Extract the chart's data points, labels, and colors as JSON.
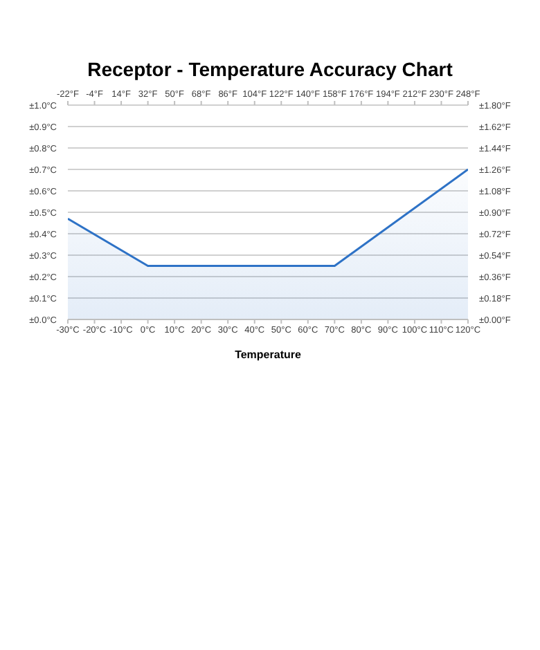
{
  "chart_data": {
    "type": "area",
    "title": "Receptor - Temperature Accuracy Chart",
    "xlabel": "Temperature",
    "x": [
      -30,
      0,
      70,
      120
    ],
    "series": [
      {
        "color": "#2e72c6",
        "values": [
          0.47,
          0.25,
          0.25,
          0.7
        ]
      }
    ],
    "xlim": [
      -30,
      120
    ],
    "xticks": [
      {
        "value": -30,
        "label": "-30°C"
      },
      {
        "value": -20,
        "label": "-20°C"
      },
      {
        "value": -10,
        "label": "-10°C"
      },
      {
        "value": 0,
        "label": "0°C"
      },
      {
        "value": 10,
        "label": "10°C"
      },
      {
        "value": 20,
        "label": "20°C"
      },
      {
        "value": 30,
        "label": "30°C"
      },
      {
        "value": 40,
        "label": "40°C"
      },
      {
        "value": 50,
        "label": "50°C"
      },
      {
        "value": 60,
        "label": "60°C"
      },
      {
        "value": 70,
        "label": "70°C"
      },
      {
        "value": 80,
        "label": "80°C"
      },
      {
        "value": 90,
        "label": "90°C"
      },
      {
        "value": 100,
        "label": "100°C"
      },
      {
        "value": 110,
        "label": "110°C"
      },
      {
        "value": 120,
        "label": "120°C"
      }
    ],
    "x2lim": [
      -22,
      248
    ],
    "x2ticks": [
      {
        "value": -22,
        "label": "-22°F"
      },
      {
        "value": -4,
        "label": "-4°F"
      },
      {
        "value": 14,
        "label": "14°F"
      },
      {
        "value": 32,
        "label": "32°F"
      },
      {
        "value": 50,
        "label": "50°F"
      },
      {
        "value": 68,
        "label": "68°F"
      },
      {
        "value": 86,
        "label": "86°F"
      },
      {
        "value": 104,
        "label": "104°F"
      },
      {
        "value": 122,
        "label": "122°F"
      },
      {
        "value": 140,
        "label": "140°F"
      },
      {
        "value": 158,
        "label": "158°F"
      },
      {
        "value": 176,
        "label": "176°F"
      },
      {
        "value": 194,
        "label": "194°F"
      },
      {
        "value": 212,
        "label": "212°F"
      },
      {
        "value": 230,
        "label": "230°F"
      },
      {
        "value": 248,
        "label": "248°F"
      }
    ],
    "ylim": [
      0,
      1
    ],
    "yticks": [
      {
        "value": 0,
        "label": "±0.0°C"
      },
      {
        "value": 0.1,
        "label": "±0.1°C"
      },
      {
        "value": 0.2,
        "label": "±0.2°C"
      },
      {
        "value": 0.3,
        "label": "±0.3°C"
      },
      {
        "value": 0.4,
        "label": "±0.4°C"
      },
      {
        "value": 0.5,
        "label": "±0.5°C"
      },
      {
        "value": 0.6,
        "label": "±0.6°C"
      },
      {
        "value": 0.7,
        "label": "±0.7°C"
      },
      {
        "value": 0.8,
        "label": "±0.8°C"
      },
      {
        "value": 0.9,
        "label": "±0.9°C"
      },
      {
        "value": 1,
        "label": "±1.0°C"
      }
    ],
    "y2lim": [
      0,
      1.8
    ],
    "y2ticks": [
      {
        "value": 0,
        "label": "±0.00°F"
      },
      {
        "value": 0.18,
        "label": "±0.18°F"
      },
      {
        "value": 0.36,
        "label": "±0.36°F"
      },
      {
        "value": 0.54,
        "label": "±0.54°F"
      },
      {
        "value": 0.72,
        "label": "±0.72°F"
      },
      {
        "value": 0.9,
        "label": "±0.90°F"
      },
      {
        "value": 1.08,
        "label": "±1.08°F"
      },
      {
        "value": 1.26,
        "label": "±1.26°F"
      },
      {
        "value": 1.44,
        "label": "±1.44°F"
      },
      {
        "value": 1.62,
        "label": "±1.62°F"
      },
      {
        "value": 1.8,
        "label": "±1.80°F"
      }
    ],
    "grid": "y"
  }
}
